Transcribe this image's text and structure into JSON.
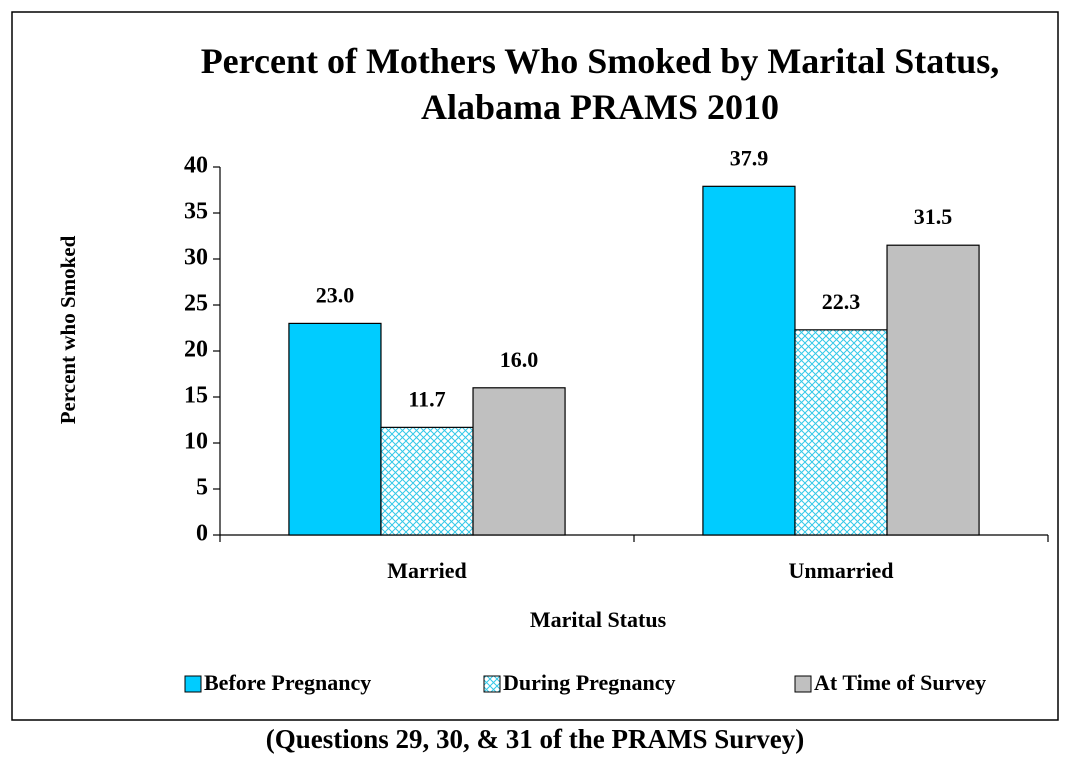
{
  "chart_data": {
    "type": "bar",
    "title": "Percent of Mothers Who Smoked by Marital Status, Alabama PRAMS 2010",
    "y_label": "Percent who Smoked",
    "x_label": "Marital Status",
    "caption": "(Questions 29, 30, & 31 of the PRAMS Survey)",
    "categories": [
      "Married",
      "Unmarried"
    ],
    "series": [
      {
        "name": "Before Pregnancy",
        "color": "#00ccff",
        "values": [
          23,
          37.9
        ],
        "value_labels": [
          "23.0",
          "37.9"
        ]
      },
      {
        "name": "During Pregnancy",
        "color": "#33c8e8",
        "hatch": true,
        "values": [
          11.7,
          22.3
        ],
        "value_labels": [
          "11.7",
          "22.3"
        ]
      },
      {
        "name": "At Time of Survey",
        "color": "#c0c0c0",
        "values": [
          16,
          31.5
        ],
        "value_labels": [
          "16.0",
          "31.5"
        ]
      }
    ],
    "ylim": [
      0,
      40
    ],
    "yticks": [
      0,
      5,
      10,
      15,
      20,
      25,
      30,
      35,
      40
    ],
    "legend": "bottom"
  }
}
